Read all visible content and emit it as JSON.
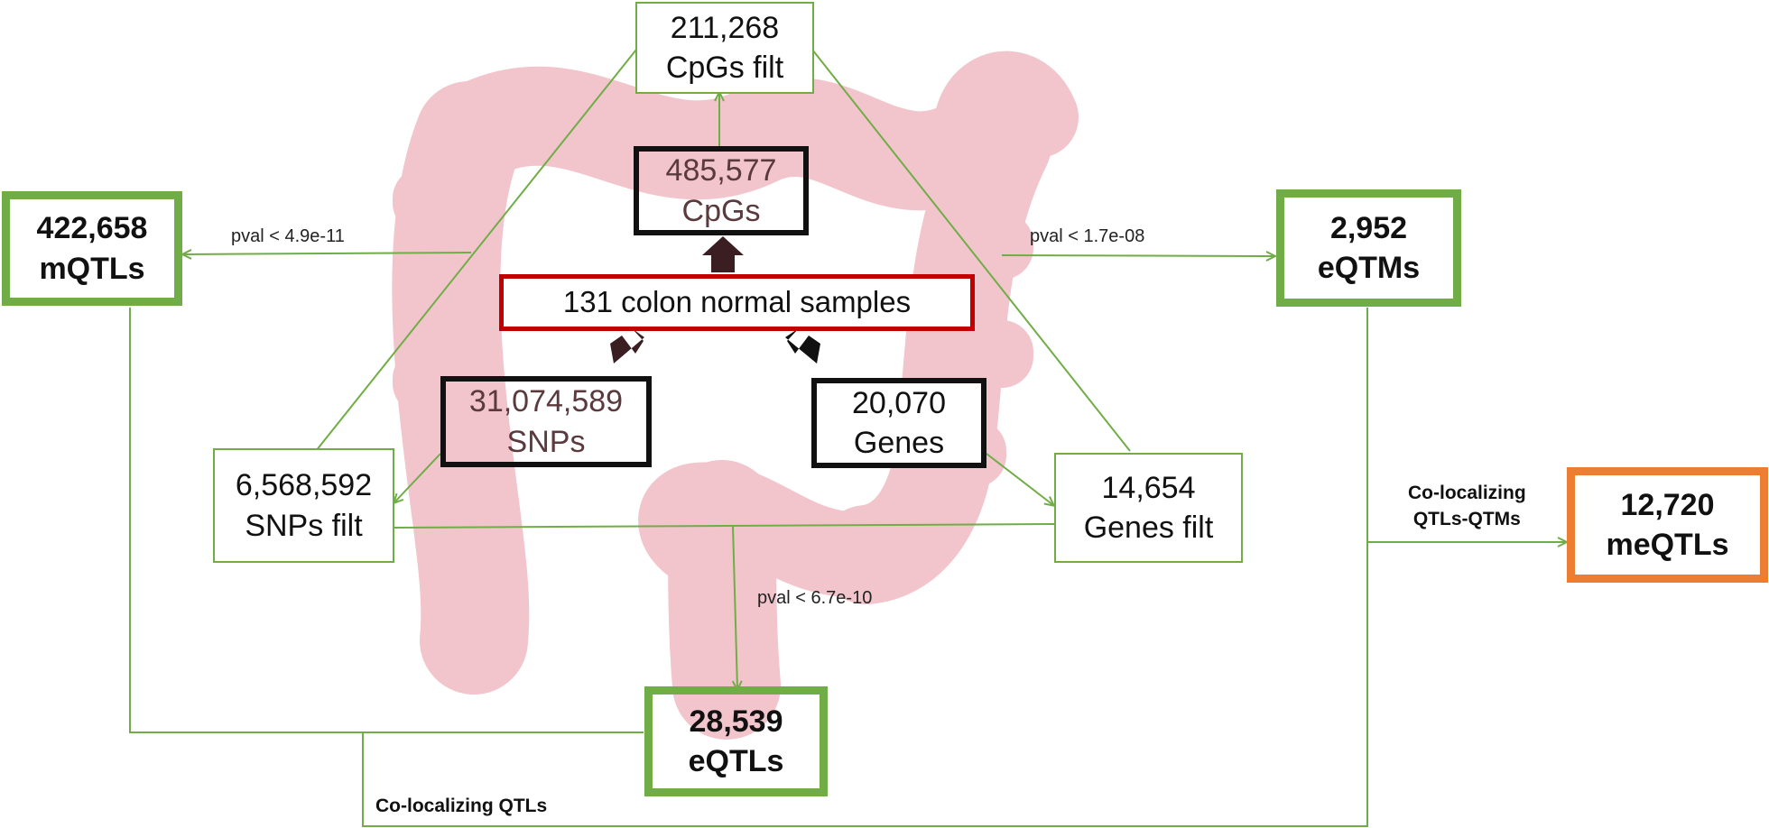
{
  "center": {
    "label": "131 colon normal samples"
  },
  "inputs": {
    "cpgs": {
      "value": "485,577",
      "unit": "CpGs"
    },
    "snps": {
      "value": "31,074,589",
      "unit": "SNPs"
    },
    "genes": {
      "value": "20,070",
      "unit": "Genes"
    }
  },
  "filtered": {
    "cpgs": {
      "value": "211,268",
      "unit": "CpGs filt"
    },
    "snps": {
      "value": "6,568,592",
      "unit": "SNPs filt"
    },
    "genes": {
      "value": "14,654",
      "unit": "Genes filt"
    }
  },
  "results": {
    "mqtls": {
      "value": "422,658",
      "unit": "mQTLs"
    },
    "eqtms": {
      "value": "2,952",
      "unit": "eQTMs"
    },
    "eqtls": {
      "value": "28,539",
      "unit": "eQTLs"
    },
    "meqtls": {
      "value": "12,720",
      "unit": "meQTLs"
    }
  },
  "thresholds": {
    "mqtl": "pval < 4.9e-11",
    "eqtm": "pval < 1.7e-08",
    "eqtl": "pval < 6.7e-10"
  },
  "colocalizing": {
    "qtls": "Co-localizing QTLs",
    "qtls_qtms_line1": "Co-localizing",
    "qtls_qtms_line2": "QTLs-QTMs"
  },
  "colors": {
    "green": "#70ad47",
    "orange": "#ed7d31",
    "red": "#c00000",
    "colon": "#f2c5cc"
  }
}
